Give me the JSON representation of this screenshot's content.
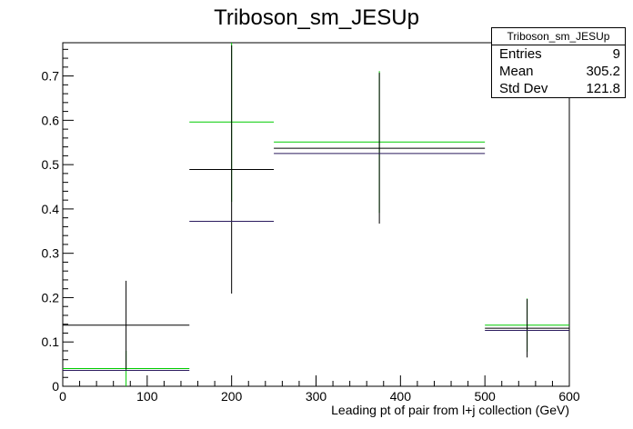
{
  "chart_data": {
    "type": "histogram",
    "title": "Triboson_sm_JESUp",
    "xlabel": "Leading pt of pair from l+j collection (GeV)",
    "ylabel": "",
    "xlim": [
      0,
      600
    ],
    "ylim": [
      0,
      0.775
    ],
    "x_ticks": [
      0,
      100,
      200,
      300,
      400,
      500,
      600
    ],
    "y_ticks": [
      0,
      0.1,
      0.2,
      0.3,
      0.4,
      0.5,
      0.6,
      0.7
    ],
    "y_tick_labels": [
      "0",
      "0.1",
      "0.2",
      "0.3",
      "0.4",
      "0.5",
      "0.6",
      "0.7"
    ],
    "bins": [
      [
        0,
        150
      ],
      [
        150,
        250
      ],
      [
        250,
        500
      ],
      [
        500,
        600
      ]
    ],
    "series": [
      {
        "color": "#00cc00",
        "values": [
          0.04,
          0.596,
          0.551,
          0.138
        ],
        "errors": [
          0.04,
          0.18,
          0.16,
          0.06
        ]
      },
      {
        "color": "#000000",
        "values": [
          0.138,
          0.489,
          0.537,
          0.131
        ],
        "errors": [
          0.1,
          0.28,
          0.17,
          0.066
        ]
      },
      {
        "color": "#2a1a5e",
        "values": [
          0.036,
          0.372,
          0.525,
          0.126
        ],
        "errors": [
          0.0,
          0.0,
          0.0,
          0.0
        ]
      }
    ],
    "stats": {
      "name": "Triboson_sm_JESUp",
      "rows": [
        {
          "label": "Entries",
          "value": "9"
        },
        {
          "label": "Mean",
          "value": "305.2"
        },
        {
          "label": "Std Dev",
          "value": "121.8"
        }
      ]
    }
  }
}
